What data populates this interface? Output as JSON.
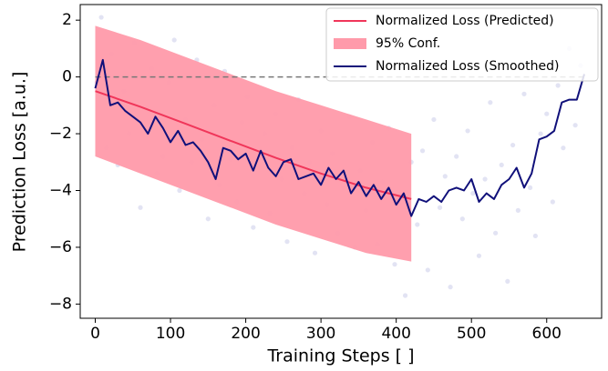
{
  "chart_data": {
    "type": "line",
    "x_label": "Training Steps [ ]",
    "y_label": "Prediction Loss [a.u.]",
    "xlim": [
      -20,
      673
    ],
    "ylim": [
      -8.5,
      2.55
    ],
    "xticks": [
      0,
      100,
      200,
      300,
      400,
      500,
      600
    ],
    "yticks": [
      {
        "value": -8,
        "label": "−8"
      },
      {
        "value": -6,
        "label": "−6"
      },
      {
        "value": -4,
        "label": "−4"
      },
      {
        "value": -2,
        "label": "−2"
      },
      0,
      2
    ],
    "legend": "upper right",
    "reference_line": {
      "y": 0,
      "x": [
        0,
        650
      ],
      "color": "#777777"
    },
    "series": [
      {
        "name": "Normalized Loss (Predicted)",
        "type": "line",
        "color": "#f0365a",
        "x": [
          0,
          60,
          120,
          180,
          240,
          300,
          360,
          420
        ],
        "values": [
          -0.5,
          -1.05,
          -1.65,
          -2.25,
          -2.85,
          -3.4,
          -3.9,
          -4.3
        ]
      },
      {
        "name": "95% Conf.",
        "type": "band",
        "color": "#ff9aaa",
        "x": [
          0,
          60,
          120,
          180,
          240,
          300,
          360,
          420
        ],
        "upper": [
          1.8,
          1.3,
          0.7,
          0.1,
          -0.5,
          -1.0,
          -1.5,
          -2.0
        ],
        "lower": [
          -2.8,
          -3.4,
          -4.0,
          -4.6,
          -5.2,
          -5.7,
          -6.2,
          -6.5
        ]
      },
      {
        "name": "Normalized Loss (Smoothed)",
        "type": "line",
        "color": "#10107a",
        "x": [
          0,
          10,
          20,
          30,
          40,
          50,
          60,
          70,
          80,
          90,
          100,
          110,
          120,
          130,
          140,
          150,
          160,
          170,
          180,
          190,
          200,
          210,
          220,
          230,
          240,
          250,
          260,
          270,
          280,
          290,
          300,
          310,
          320,
          330,
          340,
          350,
          360,
          370,
          380,
          390,
          400,
          410,
          420,
          430,
          440,
          450,
          460,
          470,
          480,
          490,
          500,
          510,
          520,
          530,
          540,
          550,
          560,
          570,
          580,
          590,
          600,
          610,
          620,
          630,
          640,
          650
        ],
        "values": [
          -0.4,
          0.6,
          -1.0,
          -0.9,
          -1.2,
          -1.4,
          -1.6,
          -2.0,
          -1.4,
          -1.8,
          -2.3,
          -1.9,
          -2.4,
          -2.3,
          -2.6,
          -3.0,
          -3.6,
          -2.5,
          -2.6,
          -2.9,
          -2.7,
          -3.3,
          -2.6,
          -3.2,
          -3.5,
          -3.0,
          -2.9,
          -3.6,
          -3.5,
          -3.4,
          -3.8,
          -3.2,
          -3.6,
          -3.3,
          -4.1,
          -3.7,
          -4.2,
          -3.8,
          -4.3,
          -3.9,
          -4.5,
          -4.1,
          -4.9,
          -4.3,
          -4.4,
          -4.2,
          -4.4,
          -4.0,
          -3.9,
          -4.0,
          -3.6,
          -4.4,
          -4.1,
          -4.3,
          -3.8,
          -3.6,
          -3.2,
          -3.9,
          -3.4,
          -2.2,
          -2.1,
          -1.9,
          -0.9,
          -0.8,
          -0.8,
          0.1
        ]
      }
    ],
    "scatter": {
      "color": "#8a8fd0",
      "x": [
        2,
        8,
        15,
        22,
        30,
        38,
        45,
        52,
        60,
        68,
        75,
        82,
        90,
        98,
        105,
        112,
        120,
        128,
        135,
        142,
        150,
        158,
        165,
        172,
        180,
        188,
        195,
        202,
        210,
        218,
        225,
        232,
        240,
        248,
        255,
        262,
        270,
        278,
        285,
        292,
        300,
        308,
        315,
        322,
        330,
        338,
        345,
        352,
        360,
        368,
        375,
        382,
        390,
        398,
        405,
        412,
        420,
        428,
        435,
        442,
        450,
        458,
        465,
        472,
        480,
        488,
        495,
        502,
        510,
        518,
        525,
        532,
        540,
        548,
        555,
        562,
        570,
        578,
        585,
        592,
        600,
        608,
        615,
        622,
        630,
        638,
        645
      ],
      "y": [
        -0.2,
        2.1,
        -2.5,
        0.8,
        -3.1,
        -0.5,
        -2.0,
        1.2,
        -4.6,
        -1.1,
        0.3,
        -3.4,
        -2.8,
        -0.2,
        1.3,
        -4.0,
        -1.5,
        -3.0,
        0.6,
        -2.2,
        -5.0,
        -1.0,
        -3.8,
        0.2,
        -2.9,
        -4.4,
        -1.6,
        -0.7,
        -5.3,
        -3.2,
        -2.0,
        -4.8,
        -1.3,
        -3.6,
        -5.8,
        -2.5,
        -0.8,
        -4.1,
        -3.0,
        -6.2,
        -1.9,
        -4.5,
        -2.7,
        -5.5,
        -3.9,
        -1.4,
        -6.0,
        -3.3,
        -4.7,
        -2.3,
        -5.9,
        -3.7,
        -1.8,
        -6.6,
        -4.2,
        -7.7,
        -3.0,
        -5.2,
        -2.6,
        -6.8,
        -1.5,
        -4.6,
        -3.5,
        -7.4,
        -2.8,
        -5.0,
        -1.9,
        -4.1,
        -6.3,
        -3.6,
        -0.9,
        -5.5,
        -3.1,
        -7.2,
        -2.4,
        -4.7,
        -0.6,
        -3.9,
        -5.6,
        -2.0,
        -1.3,
        -4.4,
        -0.3,
        -2.5,
        1.0,
        -1.7,
        0.4
      ]
    }
  }
}
